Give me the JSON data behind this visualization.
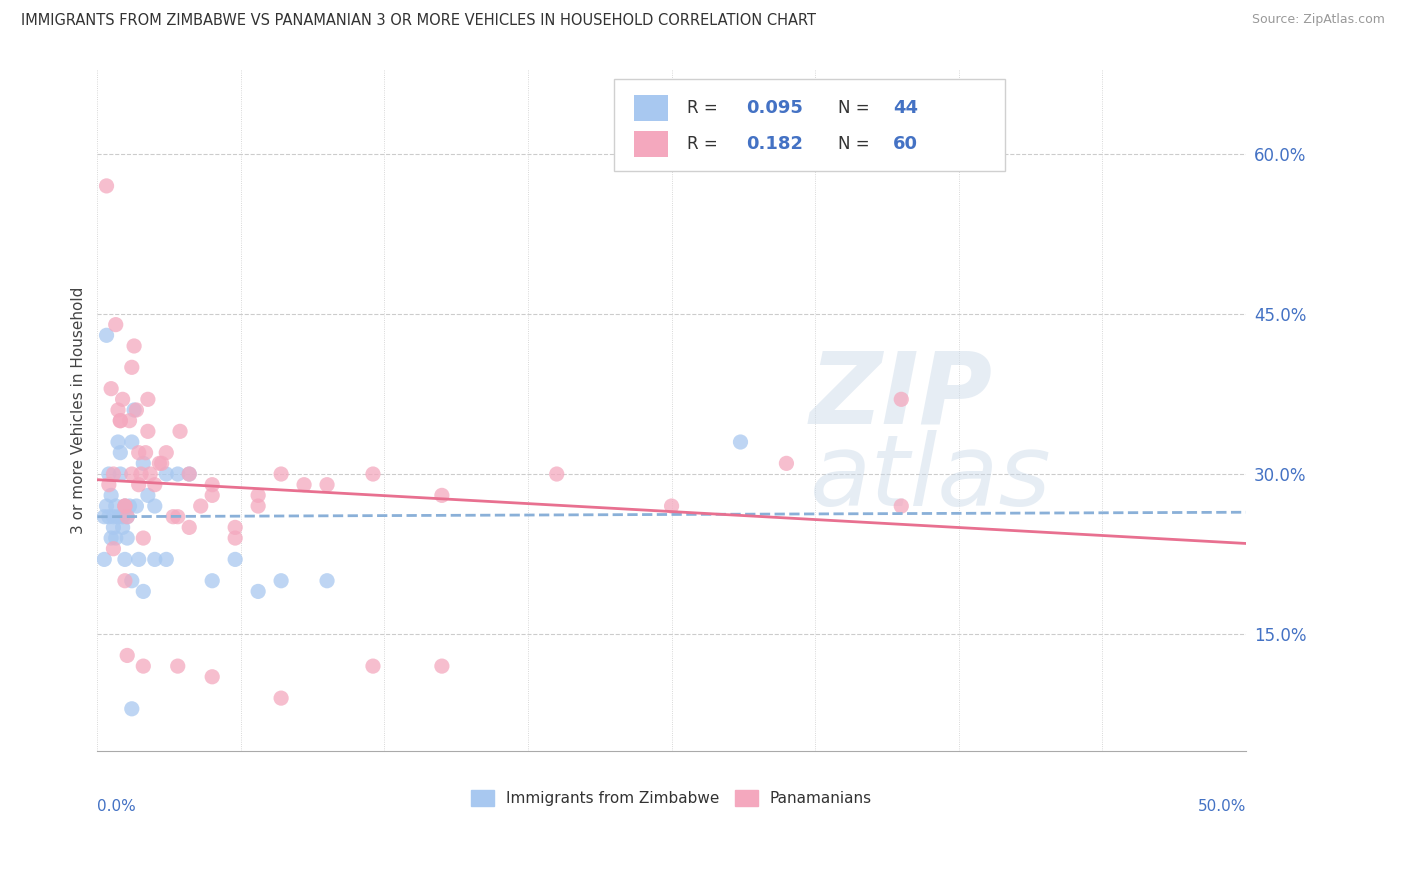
{
  "title": "IMMIGRANTS FROM ZIMBABWE VS PANAMANIAN 3 OR MORE VEHICLES IN HOUSEHOLD CORRELATION CHART",
  "source": "Source: ZipAtlas.com",
  "ylabel_ticks": [
    0.15,
    0.3,
    0.45,
    0.6
  ],
  "ylabel_tick_labels": [
    "15.0%",
    "30.0%",
    "45.0%",
    "60.0%"
  ],
  "xlim": [
    0.0,
    0.5
  ],
  "ylim": [
    0.04,
    0.68
  ],
  "blue_color": "#a8c8f0",
  "pink_color": "#f4a8be",
  "blue_trend_color": "#8ab0d8",
  "pink_trend_color": "#e87090",
  "legend_label_blue": "Immigrants from Zimbabwe",
  "legend_label_pink": "Panamanians",
  "blue_x": [
    0.003,
    0.003,
    0.004,
    0.004,
    0.005,
    0.005,
    0.006,
    0.006,
    0.007,
    0.007,
    0.008,
    0.008,
    0.009,
    0.009,
    0.01,
    0.01,
    0.011,
    0.011,
    0.012,
    0.012,
    0.013,
    0.013,
    0.014,
    0.015,
    0.016,
    0.017,
    0.018,
    0.02,
    0.022,
    0.025,
    0.03,
    0.035,
    0.04,
    0.05,
    0.06,
    0.07,
    0.08,
    0.1,
    0.015,
    0.02,
    0.025,
    0.03,
    0.28,
    0.015
  ],
  "blue_y": [
    0.26,
    0.22,
    0.43,
    0.27,
    0.3,
    0.26,
    0.28,
    0.24,
    0.26,
    0.25,
    0.24,
    0.27,
    0.33,
    0.26,
    0.32,
    0.3,
    0.26,
    0.25,
    0.22,
    0.27,
    0.24,
    0.26,
    0.27,
    0.33,
    0.36,
    0.27,
    0.22,
    0.31,
    0.28,
    0.27,
    0.3,
    0.3,
    0.3,
    0.2,
    0.22,
    0.19,
    0.2,
    0.2,
    0.2,
    0.19,
    0.22,
    0.22,
    0.33,
    0.08
  ],
  "pink_x": [
    0.004,
    0.005,
    0.006,
    0.007,
    0.008,
    0.009,
    0.01,
    0.011,
    0.012,
    0.013,
    0.014,
    0.015,
    0.016,
    0.017,
    0.018,
    0.019,
    0.02,
    0.021,
    0.022,
    0.023,
    0.025,
    0.027,
    0.03,
    0.033,
    0.036,
    0.04,
    0.045,
    0.05,
    0.06,
    0.07,
    0.007,
    0.01,
    0.012,
    0.015,
    0.018,
    0.022,
    0.028,
    0.035,
    0.04,
    0.05,
    0.06,
    0.07,
    0.08,
    0.09,
    0.1,
    0.12,
    0.15,
    0.2,
    0.3,
    0.35,
    0.013,
    0.02,
    0.035,
    0.05,
    0.08,
    0.15,
    0.012,
    0.35,
    0.25,
    0.12
  ],
  "pink_y": [
    0.57,
    0.29,
    0.38,
    0.23,
    0.44,
    0.36,
    0.35,
    0.37,
    0.27,
    0.26,
    0.35,
    0.4,
    0.42,
    0.36,
    0.29,
    0.3,
    0.24,
    0.32,
    0.34,
    0.3,
    0.29,
    0.31,
    0.32,
    0.26,
    0.34,
    0.25,
    0.27,
    0.28,
    0.24,
    0.28,
    0.3,
    0.35,
    0.27,
    0.3,
    0.32,
    0.37,
    0.31,
    0.26,
    0.3,
    0.29,
    0.25,
    0.27,
    0.3,
    0.29,
    0.29,
    0.3,
    0.28,
    0.3,
    0.31,
    0.37,
    0.13,
    0.12,
    0.12,
    0.11,
    0.09,
    0.12,
    0.2,
    0.27,
    0.27,
    0.12
  ]
}
